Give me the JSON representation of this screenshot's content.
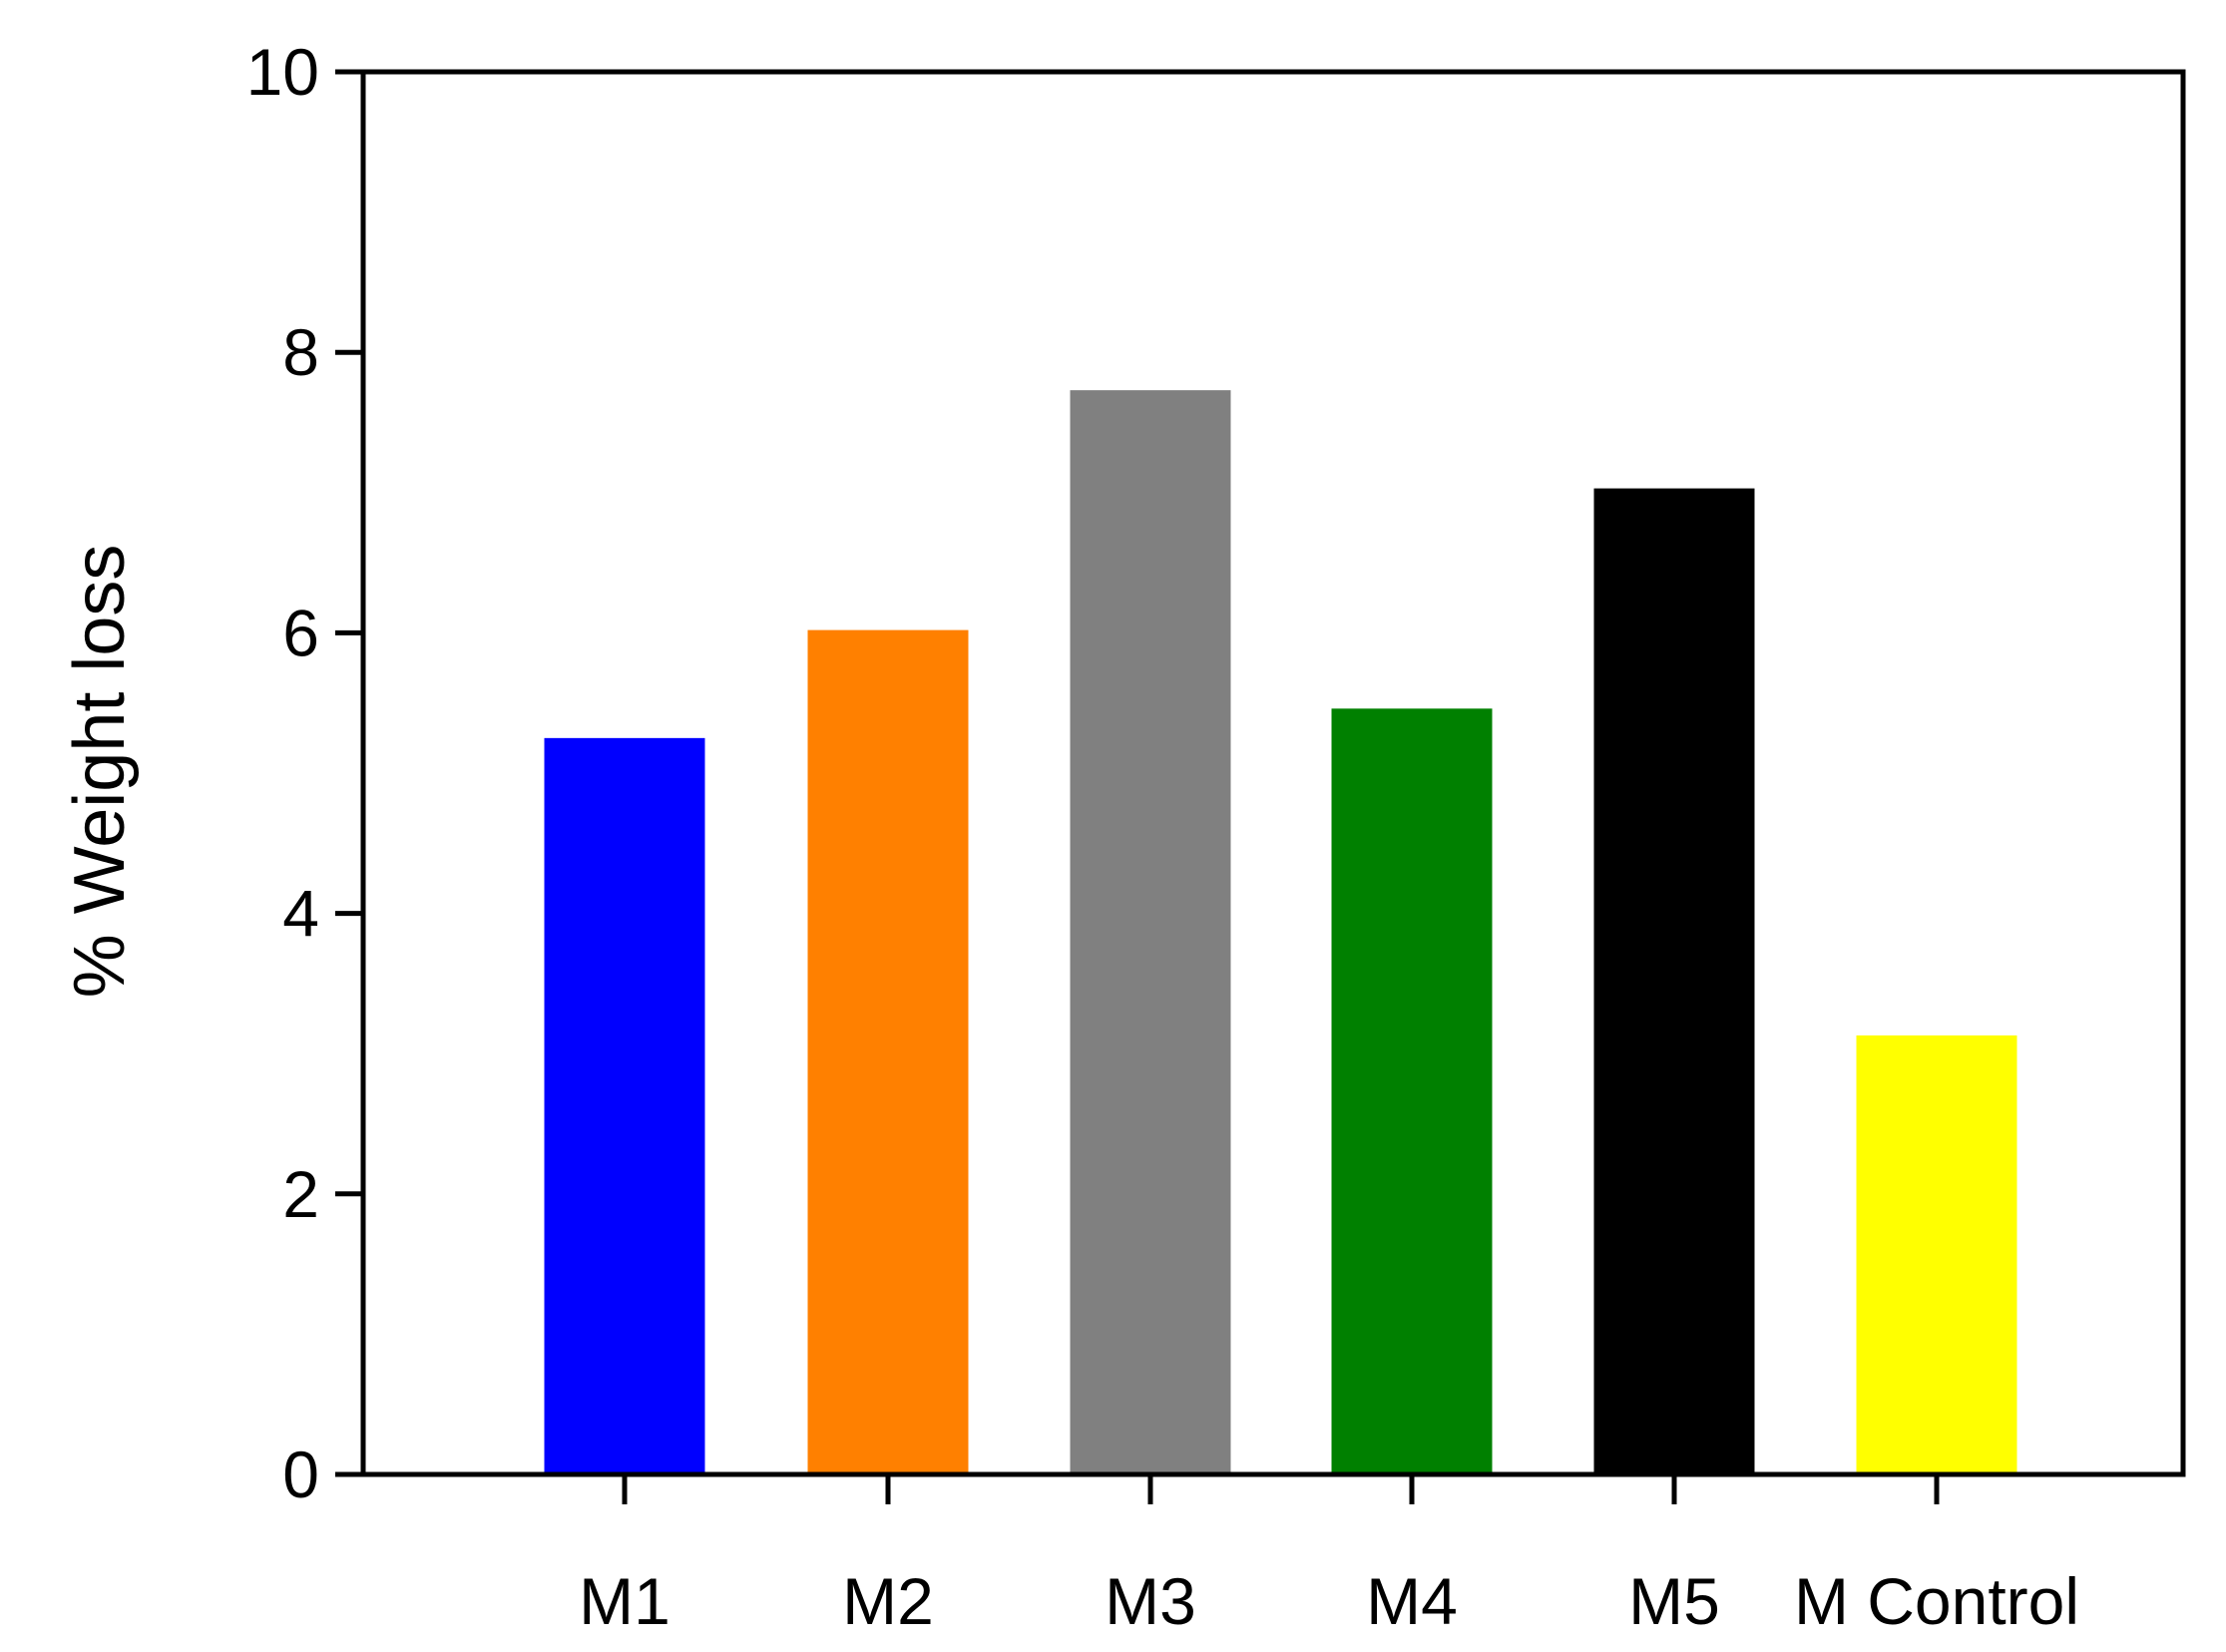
{
  "chart_data": {
    "type": "bar",
    "title": "",
    "xlabel": "",
    "ylabel": "% Weight loss",
    "ylim": [
      0,
      10
    ],
    "yticks": [
      0,
      2,
      4,
      6,
      8,
      10
    ],
    "grid": false,
    "legend": "none",
    "categories": [
      "M1",
      "M2",
      "M3",
      "M4",
      "M5",
      "M Control"
    ],
    "values": [
      5.25,
      6.02,
      7.73,
      5.46,
      7.03,
      3.13
    ],
    "colors": [
      "#0000ff",
      "#ff8000",
      "#808080",
      "#008000",
      "#000000",
      "#ffff00"
    ]
  }
}
